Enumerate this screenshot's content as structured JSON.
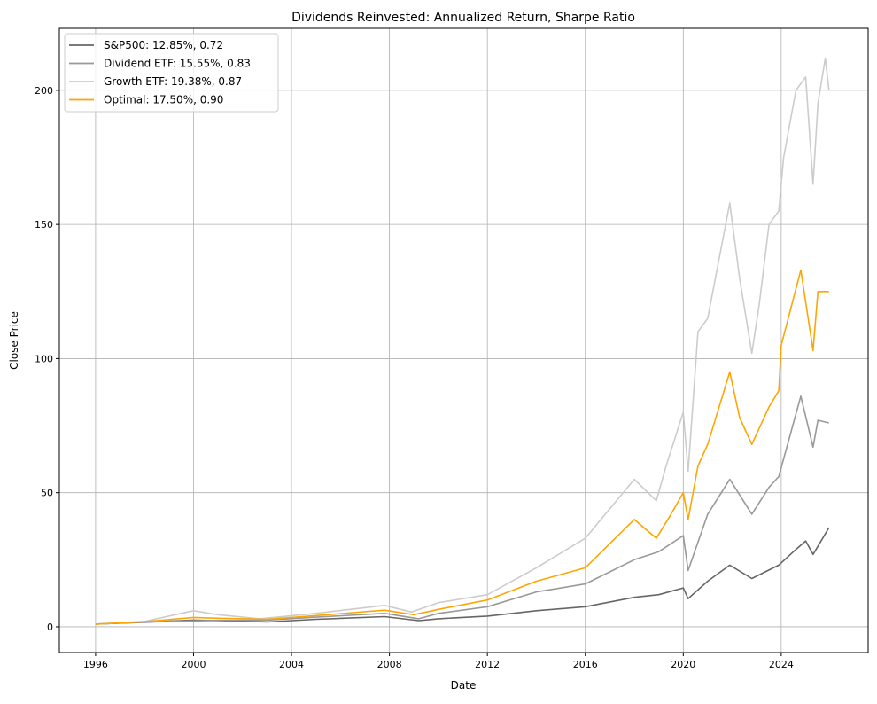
{
  "chart_data": {
    "type": "line",
    "title": "Dividends Reinvested: Annualized Return, Sharpe Ratio",
    "xlabel": "Date",
    "ylabel": "Close Price",
    "xlim": [
      1994.52,
      2027.55
    ],
    "ylim": [
      -9.6,
      223.1
    ],
    "xticks": [
      1996,
      2000,
      2004,
      2008,
      2012,
      2016,
      2020,
      2024
    ],
    "xtick_labels": [
      "1996",
      "2000",
      "2004",
      "2008",
      "2012",
      "2016",
      "2020",
      "2024"
    ],
    "yticks": [
      0,
      50,
      100,
      150,
      200
    ],
    "ytick_labels": [
      "0",
      "50",
      "100",
      "150",
      "200"
    ],
    "grid": true,
    "legend_placement": "top-left",
    "series": [
      {
        "name": "S&P500: 12.85%, 0.72",
        "color": "#666666",
        "x": [
          1996,
          1998,
          2000,
          2001,
          2003,
          2005,
          2007.8,
          2009.2,
          2010,
          2012,
          2014,
          2016,
          2018,
          2019,
          2020.0,
          2020.2,
          2021,
          2021.9,
          2022.8,
          2023.9,
          2024.5,
          2025.0,
          2025.3,
          2025.5,
          2025.95
        ],
        "y": [
          1,
          1.7,
          2.5,
          2.3,
          1.8,
          2.8,
          3.8,
          2.3,
          3,
          4,
          6,
          7.5,
          11,
          12,
          14.5,
          10.5,
          17,
          23,
          18,
          23,
          28,
          32,
          27,
          30,
          37
        ]
      },
      {
        "name": "Dividend ETF: 15.55%, 0.83",
        "color": "#999999",
        "x": [
          1996,
          1998,
          2000,
          2001,
          2003,
          2005,
          2007.8,
          2009.2,
          2010,
          2012,
          2014,
          2016,
          2018,
          2019,
          2020.0,
          2020.2,
          2021,
          2021.9,
          2022.8,
          2023.5,
          2023.9,
          2024.8,
          2025.3,
          2025.5,
          2025.95
        ],
        "y": [
          1,
          1.8,
          2.2,
          2.4,
          2.5,
          3.6,
          5,
          3,
          5,
          7.5,
          13,
          16,
          25,
          28,
          34,
          21,
          42,
          55,
          42,
          52,
          56,
          86,
          67,
          77,
          76
        ]
      },
      {
        "name": "Growth ETF: 19.38%, 0.87",
        "color": "#cccccc",
        "x": [
          1996,
          1998,
          2000,
          2001,
          2002.7,
          2005,
          2007.8,
          2008.9,
          2010,
          2012,
          2014,
          2016,
          2018,
          2018.9,
          2019.3,
          2020.0,
          2020.2,
          2020.6,
          2021,
          2021.9,
          2022.3,
          2022.8,
          2023.1,
          2023.5,
          2023.9,
          2024.1,
          2024.6,
          2025.0,
          2025.3,
          2025.5,
          2025.8,
          2025.95
        ],
        "y": [
          1,
          2,
          6,
          4.5,
          3,
          5,
          8,
          5.5,
          9,
          12,
          22,
          33,
          55,
          47,
          60,
          80,
          58,
          110,
          115,
          158,
          130,
          102,
          120,
          150,
          155,
          175,
          200,
          205,
          165,
          195,
          212,
          200
        ]
      },
      {
        "name": "Optimal: 17.50%, 0.90",
        "color": "#ffa500",
        "x": [
          1996,
          1998,
          2000,
          2001,
          2003,
          2005,
          2007.8,
          2009,
          2010,
          2012,
          2014,
          2016,
          2018,
          2018.9,
          2019.5,
          2020.0,
          2020.2,
          2020.6,
          2021,
          2021.9,
          2022.3,
          2022.8,
          2023.5,
          2023.9,
          2024.0,
          2024.8,
          2025.3,
          2025.5,
          2025.95
        ],
        "y": [
          1,
          1.9,
          3.5,
          3.2,
          2.8,
          4.2,
          6.2,
          4.5,
          6.5,
          10,
          17,
          22,
          40,
          33,
          42,
          50,
          40,
          60,
          68,
          95,
          78,
          68,
          82,
          88,
          105,
          133,
          103,
          125,
          125
        ]
      }
    ]
  }
}
